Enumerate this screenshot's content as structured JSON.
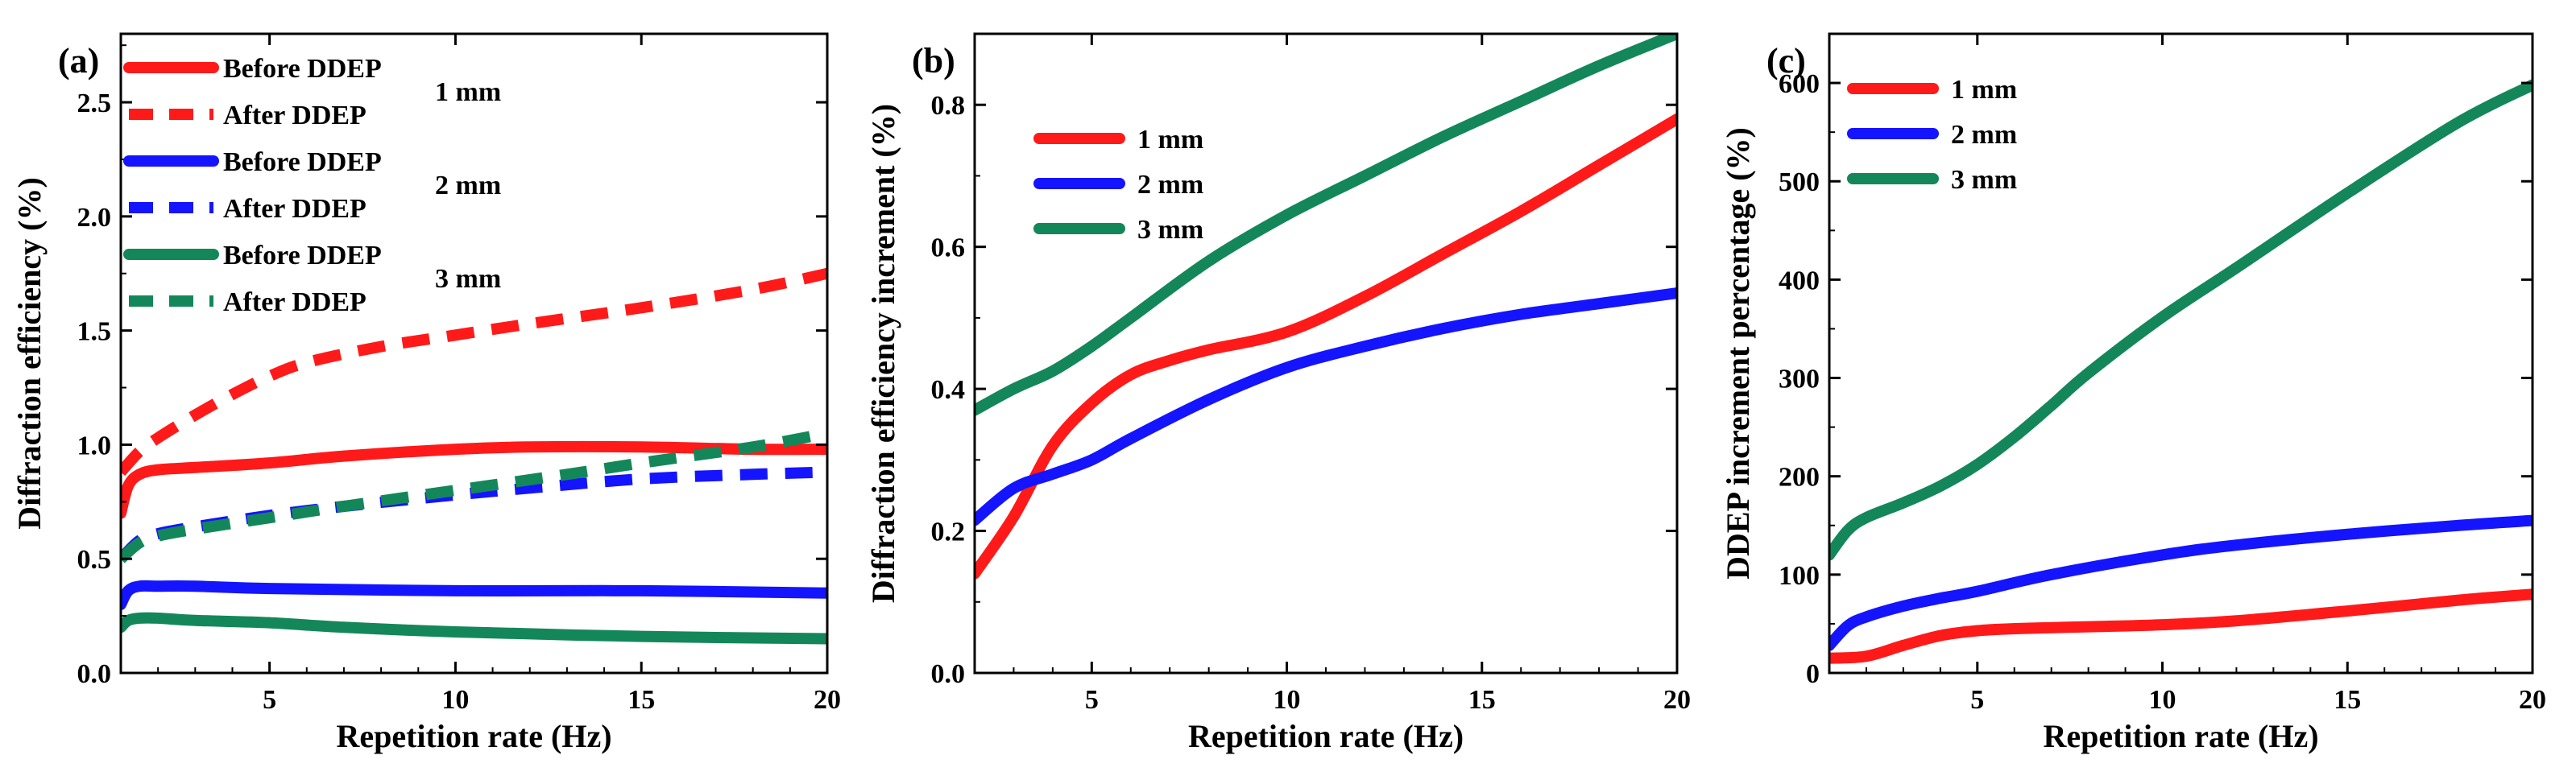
{
  "colors": {
    "red": "#ff1a1a",
    "blue": "#1414ff",
    "green": "#14875a"
  },
  "chart_data": [
    {
      "id": "a",
      "panel_label": "(a)",
      "type": "line",
      "xlabel": "Repetition rate (Hz)",
      "ylabel": "Diffraction efficiency (%)",
      "xlim": [
        1,
        20
      ],
      "ylim": [
        0,
        2.8
      ],
      "xticks": [
        5,
        10,
        15,
        20
      ],
      "yticks": [
        0.0,
        0.5,
        1.0,
        1.5,
        2.0,
        2.5
      ],
      "yticks_text": [
        "0.0",
        "0.5",
        "1.0",
        "1.5",
        "2.0",
        "2.5"
      ],
      "legend": {
        "position": "top-left",
        "entries": [
          {
            "label": "Before DDEP",
            "color": "red",
            "dash": false
          },
          {
            "label": "After DDEP",
            "color": "red",
            "dash": true
          },
          {
            "label": "Before DDEP",
            "color": "blue",
            "dash": false
          },
          {
            "label": "After DDEP",
            "color": "blue",
            "dash": true
          },
          {
            "label": "Before DDEP",
            "color": "green",
            "dash": false
          },
          {
            "label": "After DDEP",
            "color": "green",
            "dash": true
          }
        ],
        "group_labels": [
          "1 mm",
          "2 mm",
          "3 mm"
        ]
      },
      "series": [
        {
          "name": "Before DDEP 1 mm",
          "color": "red",
          "dash": false,
          "x": [
            1,
            1.2,
            1.5,
            2,
            3,
            5,
            7,
            10,
            12,
            15,
            18,
            20
          ],
          "y": [
            0.7,
            0.82,
            0.87,
            0.89,
            0.9,
            0.92,
            0.95,
            0.98,
            0.99,
            0.99,
            0.98,
            0.98
          ]
        },
        {
          "name": "After DDEP 1 mm",
          "color": "red",
          "dash": true,
          "x": [
            1,
            1.5,
            2,
            3,
            4,
            5,
            6,
            8,
            10,
            12,
            15,
            18,
            20
          ],
          "y": [
            0.88,
            0.97,
            1.03,
            1.13,
            1.22,
            1.3,
            1.36,
            1.43,
            1.48,
            1.53,
            1.6,
            1.68,
            1.75
          ]
        },
        {
          "name": "Before DDEP 2 mm",
          "color": "blue",
          "dash": false,
          "x": [
            1,
            1.2,
            1.5,
            2,
            3,
            5,
            10,
            15,
            20
          ],
          "y": [
            0.3,
            0.36,
            0.38,
            0.38,
            0.38,
            0.37,
            0.36,
            0.36,
            0.35
          ]
        },
        {
          "name": "After DDEP 2 mm",
          "color": "blue",
          "dash": true,
          "x": [
            1,
            1.5,
            2,
            3,
            5,
            7,
            10,
            12,
            15,
            18,
            20
          ],
          "y": [
            0.5,
            0.58,
            0.61,
            0.64,
            0.69,
            0.73,
            0.78,
            0.81,
            0.85,
            0.87,
            0.88
          ]
        },
        {
          "name": "Before DDEP 3 mm",
          "color": "green",
          "dash": false,
          "x": [
            1,
            1.2,
            1.5,
            2,
            3,
            5,
            7,
            10,
            15,
            20
          ],
          "y": [
            0.2,
            0.23,
            0.24,
            0.24,
            0.23,
            0.22,
            0.2,
            0.18,
            0.16,
            0.15
          ]
        },
        {
          "name": "After DDEP 3 mm",
          "color": "green",
          "dash": true,
          "x": [
            1,
            1.5,
            2,
            3,
            5,
            7,
            10,
            13,
            15,
            18,
            20
          ],
          "y": [
            0.5,
            0.57,
            0.6,
            0.63,
            0.68,
            0.73,
            0.8,
            0.87,
            0.92,
            0.99,
            1.05
          ]
        }
      ]
    },
    {
      "id": "b",
      "panel_label": "(b)",
      "type": "line",
      "xlabel": "Repetition rate (Hz)",
      "ylabel": "Diffraction efficiency increment (%)",
      "xlim": [
        2,
        20
      ],
      "ylim": [
        0,
        0.9
      ],
      "xticks": [
        5,
        10,
        15,
        20
      ],
      "yticks": [
        0.0,
        0.2,
        0.4,
        0.6,
        0.8
      ],
      "yticks_text": [
        "0.0",
        "0.2",
        "0.4",
        "0.6",
        "0.8"
      ],
      "legend": {
        "position": "top-left",
        "entries": [
          {
            "label": "1 mm",
            "color": "red",
            "dash": false
          },
          {
            "label": "2 mm",
            "color": "blue",
            "dash": false
          },
          {
            "label": "3 mm",
            "color": "green",
            "dash": false
          }
        ]
      },
      "series": [
        {
          "name": "1 mm",
          "color": "red",
          "dash": false,
          "x": [
            2,
            3,
            4,
            5,
            6,
            7,
            8,
            10,
            12,
            14,
            16,
            18,
            20
          ],
          "y": [
            0.14,
            0.22,
            0.32,
            0.38,
            0.42,
            0.44,
            0.455,
            0.48,
            0.53,
            0.59,
            0.65,
            0.715,
            0.78
          ]
        },
        {
          "name": "2 mm",
          "color": "blue",
          "dash": false,
          "x": [
            2,
            3,
            4,
            5,
            6,
            8,
            10,
            12,
            14,
            16,
            18,
            20
          ],
          "y": [
            0.215,
            0.26,
            0.28,
            0.3,
            0.33,
            0.385,
            0.43,
            0.46,
            0.485,
            0.505,
            0.52,
            0.535
          ]
        },
        {
          "name": "3 mm",
          "color": "green",
          "dash": false,
          "x": [
            2,
            3,
            4,
            5,
            6,
            8,
            10,
            12,
            14,
            16,
            18,
            20
          ],
          "y": [
            0.37,
            0.4,
            0.425,
            0.46,
            0.5,
            0.58,
            0.645,
            0.7,
            0.755,
            0.805,
            0.855,
            0.9
          ]
        }
      ]
    },
    {
      "id": "c",
      "panel_label": "(c)",
      "type": "line",
      "xlabel": "Repetition rate (Hz)",
      "ylabel": "DDEP increment percentage (%)",
      "xlim": [
        1,
        20
      ],
      "ylim": [
        0,
        650
      ],
      "xticks": [
        5,
        10,
        15,
        20
      ],
      "yticks": [
        0,
        100,
        200,
        300,
        400,
        500,
        600
      ],
      "yticks_text": [
        "0",
        "100",
        "200",
        "300",
        "400",
        "500",
        "600"
      ],
      "legend": {
        "position": "top-left",
        "entries": [
          {
            "label": "1 mm",
            "color": "red",
            "dash": false
          },
          {
            "label": "2 mm",
            "color": "blue",
            "dash": false
          },
          {
            "label": "3 mm",
            "color": "green",
            "dash": false
          }
        ]
      },
      "series": [
        {
          "name": "1 mm",
          "color": "red",
          "dash": false,
          "x": [
            1,
            2,
            3,
            4,
            5,
            6,
            8,
            10,
            12,
            15,
            18,
            20
          ],
          "y": [
            15,
            17,
            28,
            38,
            43,
            45,
            47,
            49,
            53,
            63,
            74,
            80
          ]
        },
        {
          "name": "2 mm",
          "color": "blue",
          "dash": false,
          "x": [
            1,
            1.5,
            2,
            3,
            4,
            5,
            7,
            10,
            12,
            15,
            18,
            20
          ],
          "y": [
            28,
            48,
            57,
            68,
            76,
            83,
            100,
            120,
            130,
            141,
            150,
            155
          ]
        },
        {
          "name": "3 mm",
          "color": "green",
          "dash": false,
          "x": [
            1,
            1.5,
            2,
            3,
            4,
            5,
            6,
            7,
            8,
            10,
            12,
            15,
            18,
            20
          ],
          "y": [
            120,
            145,
            158,
            173,
            190,
            212,
            240,
            272,
            305,
            362,
            412,
            488,
            560,
            598
          ]
        }
      ]
    }
  ]
}
